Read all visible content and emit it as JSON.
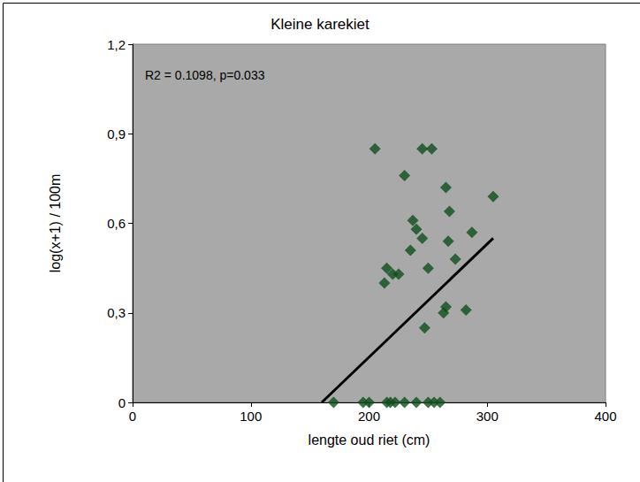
{
  "chart_data": {
    "type": "scatter",
    "title": "Kleine karekiet",
    "annotations": [
      "R2 = 0.1098, p=0.033"
    ],
    "x_label": "lengte oud riet (cm)",
    "y_label": "log(x+1) / 100m",
    "x": [
      205,
      245,
      253,
      230,
      265,
      305,
      237,
      240,
      245,
      268,
      287,
      267,
      235,
      273,
      215,
      220,
      225,
      213,
      250,
      265,
      263,
      282,
      247,
      170,
      195,
      200,
      215,
      218,
      222,
      230,
      240,
      250,
      255,
      260
    ],
    "y": [
      0.85,
      0.85,
      0.85,
      0.76,
      0.72,
      0.69,
      0.61,
      0.58,
      0.55,
      0.64,
      0.57,
      0.54,
      0.51,
      0.48,
      0.45,
      0.43,
      0.43,
      0.4,
      0.45,
      0.32,
      0.3,
      0.31,
      0.25,
      0,
      0,
      0,
      0,
      0,
      0,
      0,
      0,
      0,
      0,
      0
    ],
    "color": "#0f4f1e",
    "marker": "diamond",
    "trendline": {
      "x": [
        160,
        305
      ],
      "y": [
        0,
        0.55
      ],
      "color": "#000000",
      "line_style": "solid"
    },
    "xlim": [
      0,
      400
    ],
    "xticks": [
      0,
      100,
      200,
      300,
      400
    ],
    "ylim": [
      0,
      1.2
    ],
    "yticks": [
      0,
      {
        "value": 0.3,
        "label": "0,3"
      },
      {
        "value": 0.6,
        "label": "0,6"
      },
      {
        "value": 0.9,
        "label": "0,9"
      },
      {
        "value": 1.2,
        "label": "1,2"
      }
    ],
    "grid": false
  }
}
